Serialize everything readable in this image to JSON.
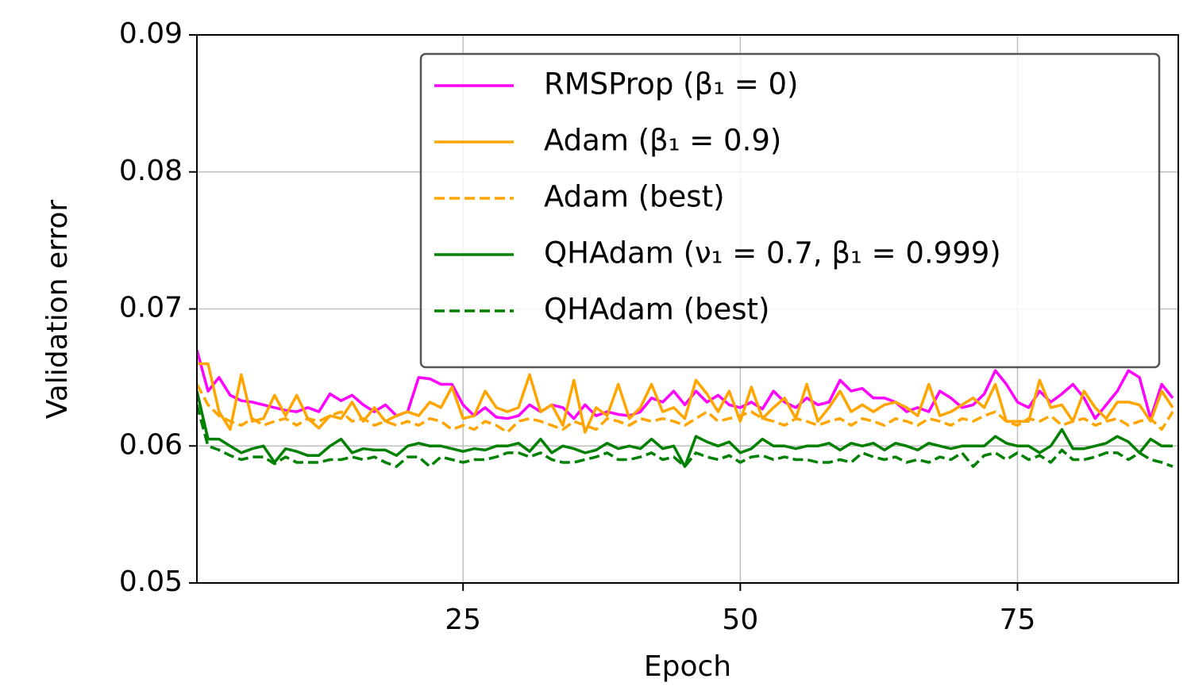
{
  "chart_data": {
    "type": "line",
    "xlabel": "Epoch",
    "ylabel": "Validation error",
    "xlim": [
      1,
      89.5
    ],
    "ylim": [
      0.05,
      0.09
    ],
    "xticks": [
      25,
      50,
      75
    ],
    "yticks": [
      0.05,
      0.06,
      0.07,
      0.08,
      0.09
    ],
    "grid": true,
    "legend": "upper right",
    "x": [
      1,
      2,
      3,
      4,
      5,
      6,
      7,
      8,
      9,
      10,
      11,
      12,
      13,
      14,
      15,
      16,
      17,
      18,
      19,
      20,
      21,
      22,
      23,
      24,
      25,
      26,
      27,
      28,
      29,
      30,
      31,
      32,
      33,
      34,
      35,
      36,
      37,
      38,
      39,
      40,
      41,
      42,
      43,
      44,
      45,
      46,
      47,
      48,
      49,
      50,
      51,
      52,
      53,
      54,
      55,
      56,
      57,
      58,
      59,
      60,
      61,
      62,
      63,
      64,
      65,
      66,
      67,
      68,
      69,
      70,
      71,
      72,
      73,
      74,
      75,
      76,
      77,
      78,
      79,
      80,
      81,
      82,
      83,
      84,
      85,
      86,
      87,
      88,
      89
    ],
    "series": [
      {
        "name": "RMSProp (β₁ = 0)",
        "color": "#ff00ff",
        "linestyle": "solid",
        "values": [
          0.067,
          0.064,
          0.065,
          0.0637,
          0.0633,
          0.0632,
          0.063,
          0.0628,
          0.0626,
          0.0625,
          0.0628,
          0.0625,
          0.0638,
          0.0633,
          0.0637,
          0.063,
          0.0625,
          0.063,
          0.0622,
          0.0625,
          0.065,
          0.0649,
          0.0645,
          0.0645,
          0.063,
          0.0622,
          0.0628,
          0.0621,
          0.062,
          0.0622,
          0.063,
          0.0625,
          0.063,
          0.0628,
          0.062,
          0.063,
          0.0622,
          0.0625,
          0.0623,
          0.0622,
          0.0625,
          0.0635,
          0.0632,
          0.064,
          0.063,
          0.064,
          0.0632,
          0.0637,
          0.063,
          0.0628,
          0.0632,
          0.0627,
          0.064,
          0.0632,
          0.0628,
          0.0635,
          0.063,
          0.0632,
          0.0648,
          0.064,
          0.0642,
          0.0635,
          0.0635,
          0.0632,
          0.0625,
          0.0628,
          0.0625,
          0.064,
          0.0635,
          0.0628,
          0.063,
          0.0638,
          0.0655,
          0.0645,
          0.0632,
          0.0628,
          0.064,
          0.0632,
          0.0638,
          0.0645,
          0.0635,
          0.062,
          0.063,
          0.064,
          0.0655,
          0.065,
          0.062,
          0.0645,
          0.0635
        ]
      },
      {
        "name": "Adam (β₁ = 0.9)",
        "color": "#ffa500",
        "linestyle": "solid",
        "values": [
          0.066,
          0.066,
          0.0625,
          0.0612,
          0.0652,
          0.0618,
          0.062,
          0.0637,
          0.0622,
          0.0637,
          0.062,
          0.0613,
          0.0622,
          0.062,
          0.0632,
          0.0618,
          0.0628,
          0.0618,
          0.0622,
          0.0625,
          0.0622,
          0.0632,
          0.0628,
          0.0643,
          0.062,
          0.0622,
          0.064,
          0.0628,
          0.0625,
          0.0628,
          0.0652,
          0.0625,
          0.063,
          0.0615,
          0.0648,
          0.061,
          0.0628,
          0.0622,
          0.0645,
          0.062,
          0.0628,
          0.0645,
          0.0625,
          0.0628,
          0.062,
          0.0648,
          0.0638,
          0.0625,
          0.064,
          0.0618,
          0.0643,
          0.062,
          0.0628,
          0.0635,
          0.062,
          0.0645,
          0.0618,
          0.0628,
          0.064,
          0.0625,
          0.063,
          0.0625,
          0.063,
          0.0632,
          0.0628,
          0.0622,
          0.0645,
          0.0622,
          0.0625,
          0.063,
          0.0635,
          0.0628,
          0.0645,
          0.0618,
          0.0618,
          0.0618,
          0.0648,
          0.0628,
          0.063,
          0.0618,
          0.064,
          0.0628,
          0.062,
          0.0632,
          0.0632,
          0.063,
          0.0618,
          0.064,
          0.0628
        ]
      },
      {
        "name": "Adam (best)",
        "color": "#ffa500",
        "linestyle": "dashed",
        "values": [
          0.0645,
          0.063,
          0.0622,
          0.0618,
          0.0615,
          0.062,
          0.0615,
          0.0618,
          0.062,
          0.0615,
          0.062,
          0.0618,
          0.0622,
          0.0625,
          0.0618,
          0.062,
          0.0615,
          0.0618,
          0.0615,
          0.0618,
          0.0615,
          0.062,
          0.0618,
          0.0612,
          0.0615,
          0.0612,
          0.0618,
          0.0615,
          0.061,
          0.0618,
          0.062,
          0.0618,
          0.0615,
          0.0612,
          0.0618,
          0.0615,
          0.0612,
          0.062,
          0.0618,
          0.0615,
          0.062,
          0.0618,
          0.062,
          0.0618,
          0.0615,
          0.062,
          0.0625,
          0.0618,
          0.062,
          0.0622,
          0.0625,
          0.062,
          0.0618,
          0.0615,
          0.062,
          0.0618,
          0.0615,
          0.0618,
          0.062,
          0.0615,
          0.062,
          0.0618,
          0.0615,
          0.062,
          0.0618,
          0.0615,
          0.062,
          0.0618,
          0.0615,
          0.062,
          0.0618,
          0.0622,
          0.0625,
          0.0618,
          0.0615,
          0.062,
          0.0618,
          0.0622,
          0.0615,
          0.0618,
          0.062,
          0.0615,
          0.0618,
          0.062,
          0.0615,
          0.0618,
          0.062,
          0.0612,
          0.0625
        ]
      },
      {
        "name": "QHAdam (ν₁ = 0.7, β₁ = 0.999)",
        "color": "#008000",
        "linestyle": "solid",
        "values": [
          0.064,
          0.0605,
          0.0605,
          0.06,
          0.0595,
          0.0598,
          0.06,
          0.0588,
          0.0598,
          0.0596,
          0.0593,
          0.0593,
          0.06,
          0.0605,
          0.0595,
          0.0598,
          0.0597,
          0.0597,
          0.0593,
          0.06,
          0.0602,
          0.06,
          0.06,
          0.0598,
          0.0596,
          0.0598,
          0.0597,
          0.06,
          0.06,
          0.0602,
          0.0596,
          0.0605,
          0.0595,
          0.06,
          0.0598,
          0.0595,
          0.0597,
          0.0602,
          0.0598,
          0.06,
          0.0598,
          0.0605,
          0.0598,
          0.06,
          0.0585,
          0.0607,
          0.0603,
          0.06,
          0.0603,
          0.0595,
          0.0598,
          0.0605,
          0.06,
          0.06,
          0.0598,
          0.06,
          0.06,
          0.0602,
          0.0597,
          0.0602,
          0.06,
          0.0602,
          0.0597,
          0.0602,
          0.06,
          0.0597,
          0.0602,
          0.06,
          0.0598,
          0.06,
          0.06,
          0.06,
          0.0607,
          0.0602,
          0.06,
          0.06,
          0.0595,
          0.06,
          0.0612,
          0.0598,
          0.0598,
          0.06,
          0.0602,
          0.0607,
          0.0603,
          0.0595,
          0.0605,
          0.06,
          0.06
        ]
      },
      {
        "name": "QHAdam (best)",
        "color": "#008000",
        "linestyle": "dashed",
        "values": [
          0.063,
          0.06,
          0.0597,
          0.0593,
          0.059,
          0.0592,
          0.0592,
          0.0587,
          0.0592,
          0.0588,
          0.0588,
          0.0588,
          0.059,
          0.059,
          0.0592,
          0.059,
          0.0592,
          0.0588,
          0.0585,
          0.0592,
          0.0592,
          0.0585,
          0.0592,
          0.059,
          0.0588,
          0.059,
          0.059,
          0.0592,
          0.0595,
          0.0595,
          0.0592,
          0.0595,
          0.059,
          0.0588,
          0.0588,
          0.059,
          0.0592,
          0.0595,
          0.059,
          0.059,
          0.0592,
          0.0595,
          0.059,
          0.0592,
          0.0585,
          0.0595,
          0.0592,
          0.059,
          0.0593,
          0.0588,
          0.0592,
          0.0593,
          0.059,
          0.0592,
          0.059,
          0.059,
          0.0588,
          0.0588,
          0.059,
          0.0588,
          0.0595,
          0.0592,
          0.059,
          0.0592,
          0.0588,
          0.059,
          0.0588,
          0.0592,
          0.059,
          0.0595,
          0.0585,
          0.0593,
          0.0595,
          0.059,
          0.0595,
          0.059,
          0.0593,
          0.0588,
          0.0597,
          0.059,
          0.059,
          0.0592,
          0.0595,
          0.0595,
          0.059,
          0.0595,
          0.059,
          0.0588,
          0.0585
        ]
      }
    ]
  }
}
